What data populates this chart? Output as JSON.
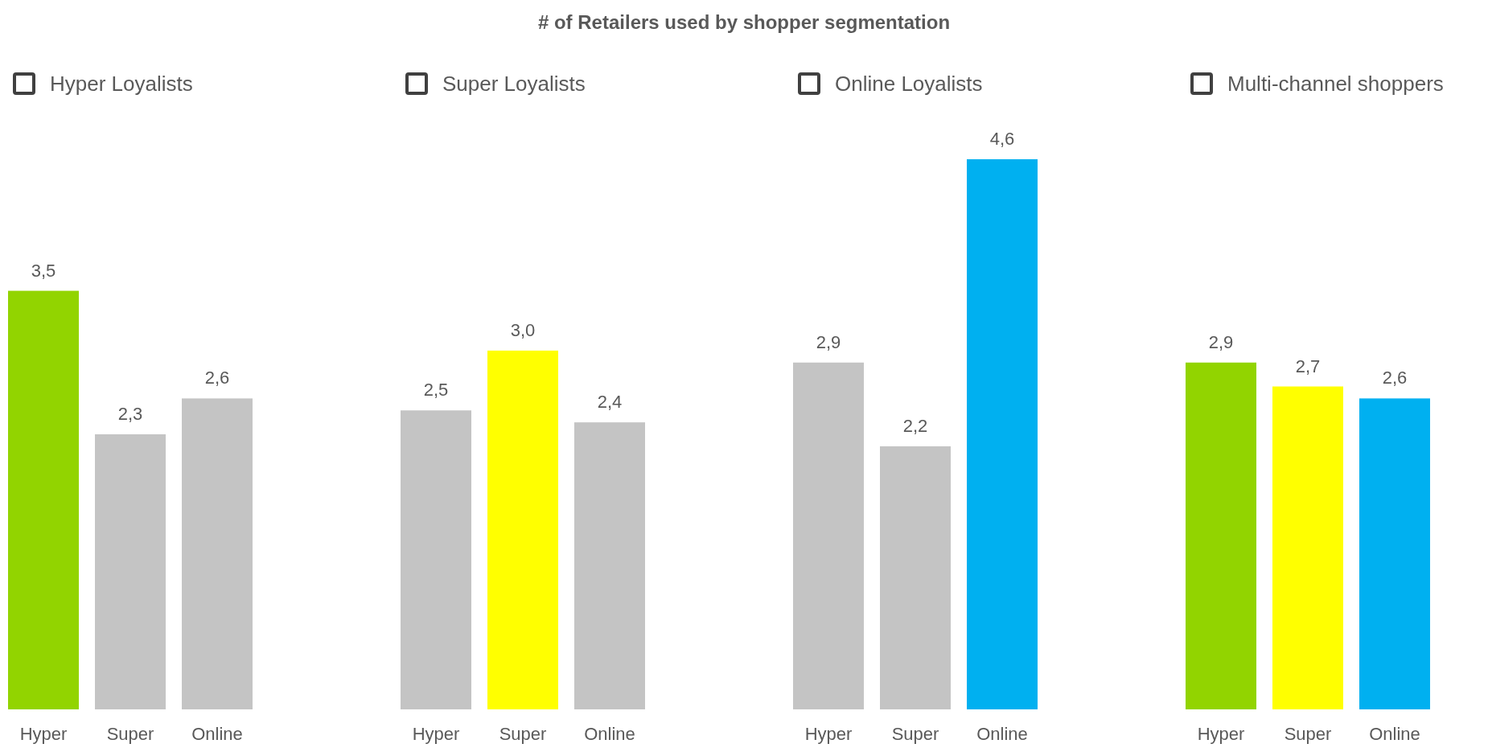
{
  "chart_data": [
    {
      "type": "bar",
      "subtitle": "Hyper Loyalists",
      "categories": [
        "Hyper",
        "Super",
        "Online"
      ],
      "values": [
        3.5,
        2.3,
        2.6
      ],
      "colors": [
        "#92d400",
        "#c4c4c4",
        "#c4c4c4"
      ],
      "value_labels": [
        "3,5",
        "2,3",
        "2,6"
      ]
    },
    {
      "type": "bar",
      "title": "# of Retailers used by shopper segmentation",
      "subtitle": "Super Loyalists",
      "categories": [
        "Hyper",
        "Super",
        "Online"
      ],
      "values": [
        2.5,
        3.0,
        2.4
      ],
      "colors": [
        "#c4c4c4",
        "#ffff00",
        "#c4c4c4"
      ],
      "value_labels": [
        "2,5",
        "3,0",
        "2,4"
      ]
    },
    {
      "type": "bar",
      "subtitle": "Online Loyalists",
      "categories": [
        "Hyper",
        "Super",
        "Online"
      ],
      "values": [
        2.9,
        2.2,
        4.6
      ],
      "colors": [
        "#c4c4c4",
        "#c4c4c4",
        "#00b0f0"
      ],
      "value_labels": [
        "2,9",
        "2,2",
        "4,6"
      ]
    },
    {
      "type": "bar",
      "subtitle": "Multi-channel shoppers",
      "categories": [
        "Hyper",
        "Super",
        "Online"
      ],
      "values": [
        2.9,
        2.7,
        2.6
      ],
      "colors": [
        "#92d400",
        "#ffff00",
        "#00b0f0"
      ],
      "value_labels": [
        "2,9",
        "2,7",
        "2,6"
      ]
    }
  ]
}
